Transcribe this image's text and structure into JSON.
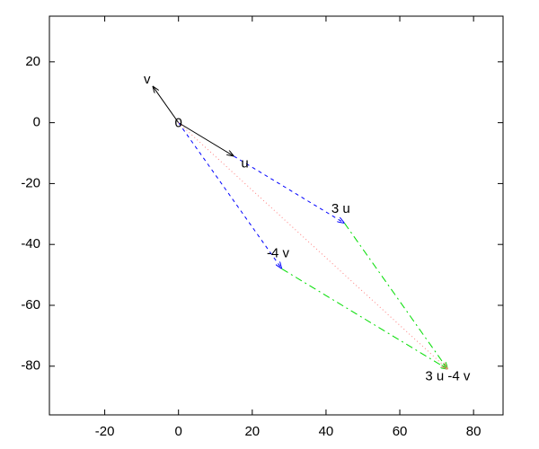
{
  "chart_data": {
    "type": "vector",
    "xlim": [
      -35,
      88
    ],
    "ylim": [
      -96,
      35
    ],
    "xticks": [
      -20,
      0,
      20,
      40,
      60,
      80
    ],
    "yticks": [
      -80,
      -60,
      -40,
      -20,
      0,
      20
    ],
    "segments": [
      {
        "from": [
          0,
          0
        ],
        "to": [
          -7,
          12
        ],
        "color": "#000000",
        "style": "solid"
      },
      {
        "from": [
          0,
          0
        ],
        "to": [
          15,
          -11
        ],
        "color": "#000000",
        "style": "solid"
      },
      {
        "from": [
          15,
          -11
        ],
        "to": [
          45,
          -33
        ],
        "color": "#0000ff",
        "style": "dashed"
      },
      {
        "from": [
          0,
          0
        ],
        "to": [
          28,
          -48
        ],
        "color": "#0000ff",
        "style": "dashed"
      },
      {
        "from": [
          45,
          -33
        ],
        "to": [
          73,
          -81
        ],
        "color": "#00dd00",
        "style": "dashdot"
      },
      {
        "from": [
          28,
          -48
        ],
        "to": [
          73,
          -81
        ],
        "color": "#00dd00",
        "style": "dashdot"
      },
      {
        "from": [
          0,
          0
        ],
        "to": [
          73,
          -81
        ],
        "color": "#ff8080",
        "style": "dotted"
      }
    ],
    "labels": [
      {
        "text": "v",
        "x": -8.5,
        "y": 14
      },
      {
        "text": "0",
        "x": 0,
        "y": -0.3
      },
      {
        "text": "u",
        "x": 18,
        "y": -13.5
      },
      {
        "text": "3 u",
        "x": 44,
        "y": -28.5
      },
      {
        "text": "-4 v",
        "x": 27,
        "y": -43
      },
      {
        "text": "3 u -4 v",
        "x": 73,
        "y": -83.5
      }
    ]
  }
}
